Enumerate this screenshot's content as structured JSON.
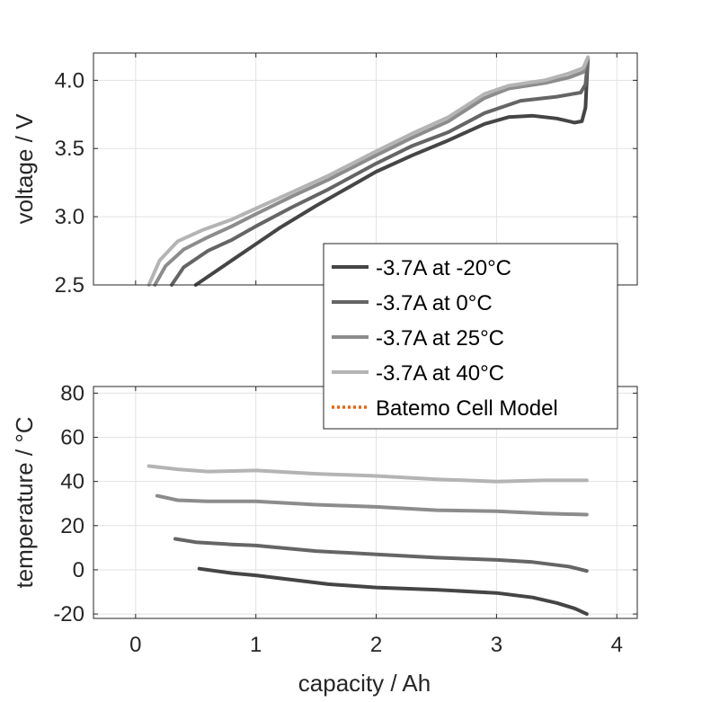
{
  "chart_data": [
    {
      "type": "line",
      "panel": "top",
      "xlabel": "",
      "ylabel": "voltage / V",
      "xlim": [
        -0.35,
        4.17
      ],
      "ylim": [
        2.5,
        4.2
      ],
      "xticks": [
        0,
        1,
        2,
        3,
        4
      ],
      "xtick_labels": [
        "",
        "",
        "",
        "",
        ""
      ],
      "yticks": [
        2.5,
        3.0,
        3.5,
        4.0
      ],
      "ytick_labels": [
        "2.5",
        "3.0",
        "3.5",
        "4.0"
      ],
      "grid": true,
      "series": [
        {
          "name": "-3.7A at -20°C",
          "color": "#454545",
          "x": [
            0.5,
            0.6,
            0.8,
            1.0,
            1.2,
            1.5,
            1.8,
            2.0,
            2.3,
            2.6,
            2.9,
            3.1,
            3.3,
            3.5,
            3.65,
            3.71,
            3.74,
            3.75,
            3.76
          ],
          "y": [
            2.5,
            2.56,
            2.68,
            2.8,
            2.92,
            3.08,
            3.23,
            3.33,
            3.45,
            3.56,
            3.68,
            3.73,
            3.74,
            3.72,
            3.69,
            3.7,
            3.8,
            4.0,
            4.16
          ]
        },
        {
          "name": "-3.7A at 0°C",
          "color": "#656565",
          "x": [
            0.3,
            0.4,
            0.6,
            0.8,
            1.0,
            1.3,
            1.6,
            2.0,
            2.3,
            2.6,
            2.9,
            3.2,
            3.5,
            3.7,
            3.74,
            3.76
          ],
          "y": [
            2.5,
            2.63,
            2.75,
            2.83,
            2.93,
            3.07,
            3.2,
            3.39,
            3.52,
            3.62,
            3.76,
            3.85,
            3.88,
            3.91,
            3.97,
            4.16
          ]
        },
        {
          "name": "-3.7A at 25°C",
          "color": "#8c8c8c",
          "x": [
            0.16,
            0.25,
            0.4,
            0.6,
            0.8,
            1.0,
            1.3,
            1.6,
            2.0,
            2.3,
            2.6,
            2.9,
            3.1,
            3.4,
            3.6,
            3.72,
            3.76
          ],
          "y": [
            2.5,
            2.64,
            2.76,
            2.85,
            2.93,
            3.02,
            3.15,
            3.27,
            3.45,
            3.58,
            3.7,
            3.87,
            3.94,
            3.98,
            4.02,
            4.06,
            4.16
          ]
        },
        {
          "name": "-3.7A at 40°C",
          "color": "#b4b4b4",
          "x": [
            0.11,
            0.2,
            0.35,
            0.55,
            0.8,
            1.0,
            1.3,
            1.6,
            2.0,
            2.3,
            2.6,
            2.9,
            3.1,
            3.4,
            3.6,
            3.72,
            3.76
          ],
          "y": [
            2.5,
            2.68,
            2.82,
            2.9,
            2.98,
            3.06,
            3.18,
            3.3,
            3.48,
            3.61,
            3.73,
            3.9,
            3.96,
            4.0,
            4.05,
            4.09,
            4.17
          ]
        }
      ]
    },
    {
      "type": "line",
      "panel": "bottom",
      "xlabel": "capacity / Ah",
      "ylabel": "temperature / °C",
      "xlim": [
        -0.35,
        4.17
      ],
      "ylim": [
        -22,
        83
      ],
      "xticks": [
        0,
        1,
        2,
        3,
        4
      ],
      "xtick_labels": [
        "0",
        "1",
        "2",
        "3",
        "4"
      ],
      "yticks": [
        -20,
        0,
        20,
        40,
        60,
        80
      ],
      "ytick_labels": [
        "-20",
        "0",
        "20",
        "40",
        "60",
        "80"
      ],
      "grid": true,
      "series": [
        {
          "name": "-3.7A at -20°C",
          "color": "#454545",
          "x": [
            0.53,
            0.8,
            1.0,
            1.3,
            1.6,
            2.0,
            2.5,
            3.0,
            3.3,
            3.5,
            3.65,
            3.75
          ],
          "y": [
            0.5,
            -1.5,
            -2.5,
            -4.5,
            -6.5,
            -8.0,
            -9.0,
            -10.5,
            -12.5,
            -15.0,
            -17.5,
            -20.0
          ]
        },
        {
          "name": "-3.7A at 0°C",
          "color": "#656565",
          "x": [
            0.33,
            0.5,
            0.8,
            1.0,
            1.5,
            2.0,
            2.5,
            3.0,
            3.3,
            3.6,
            3.75
          ],
          "y": [
            14.0,
            12.5,
            11.5,
            11.0,
            8.5,
            7.0,
            5.5,
            4.5,
            3.5,
            1.5,
            -0.5
          ]
        },
        {
          "name": "-3.7A at 25°C",
          "color": "#8c8c8c",
          "x": [
            0.18,
            0.35,
            0.6,
            1.0,
            1.5,
            2.0,
            2.5,
            3.0,
            3.4,
            3.75
          ],
          "y": [
            33.5,
            31.5,
            31.0,
            31.0,
            29.5,
            28.5,
            27.0,
            26.5,
            25.5,
            25.0
          ]
        },
        {
          "name": "-3.7A at 40°C",
          "color": "#b4b4b4",
          "x": [
            0.11,
            0.35,
            0.6,
            1.0,
            1.5,
            2.0,
            2.5,
            3.0,
            3.4,
            3.75
          ],
          "y": [
            47.0,
            45.5,
            44.5,
            45.0,
            43.5,
            42.5,
            41.0,
            40.0,
            40.5,
            40.5
          ]
        }
      ]
    }
  ],
  "legend": {
    "location": "center-right",
    "entries": [
      {
        "label": "-3.7A at -20°C",
        "color": "#454545",
        "style": "solid"
      },
      {
        "label": "-3.7A at 0°C",
        "color": "#656565",
        "style": "solid"
      },
      {
        "label": "-3.7A at 25°C",
        "color": "#8c8c8c",
        "style": "solid"
      },
      {
        "label": "-3.7A at 40°C",
        "color": "#b4b4b4",
        "style": "solid"
      },
      {
        "label": "Batemo Cell Model",
        "color": "#e8620e",
        "style": "dotted"
      }
    ]
  }
}
